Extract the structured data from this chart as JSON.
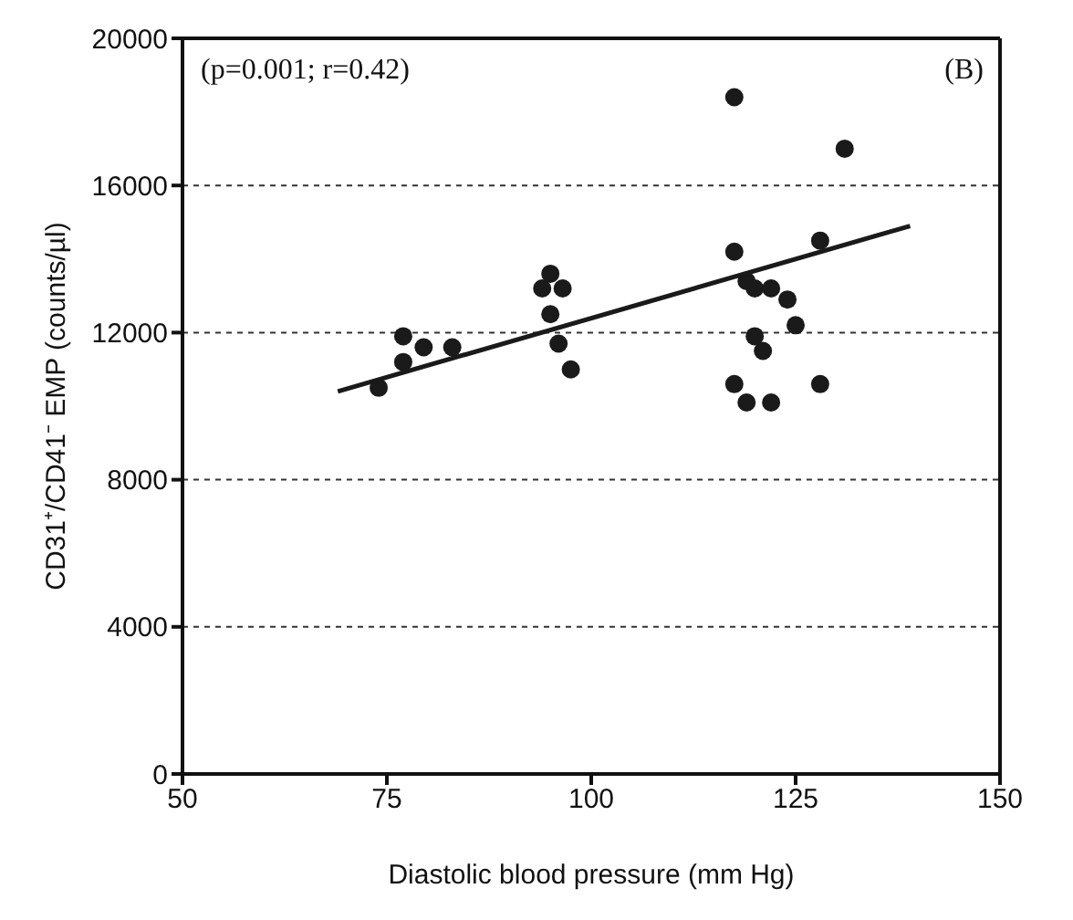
{
  "chart_data": {
    "type": "scatter",
    "xlabel": "Diastolic blood pressure (mm Hg)",
    "ylabel": "CD31⁺/CD41⁻ EMP (counts/µl)",
    "annotations": [
      "(p=0.001; r=0.42)",
      "(B)"
    ],
    "xlim": [
      50,
      150
    ],
    "xticks": [
      50,
      75,
      100,
      125,
      150
    ],
    "ylim": [
      0,
      20000
    ],
    "yticks": [
      0,
      4000,
      8000,
      12000,
      16000,
      20000
    ],
    "grid": "y",
    "marker": "circle",
    "series": [
      {
        "color": "#1a1a1a",
        "x": [
          74,
          77,
          77,
          79.5,
          83,
          94,
          95,
          95,
          96.5,
          96,
          97.5,
          117.5,
          117.5,
          119,
          120,
          122,
          124,
          120,
          121,
          125,
          117.5,
          119,
          122,
          128,
          128,
          131
        ],
        "values": [
          10500,
          11200,
          11900,
          11600,
          11600,
          13200,
          13600,
          12500,
          13200,
          11700,
          11000,
          18400,
          14200,
          13400,
          13200,
          13200,
          12900,
          11900,
          11500,
          12200,
          10600,
          10100,
          10100,
          14500,
          10600,
          17000
        ]
      },
      {
        "type": "line",
        "marker": "none",
        "color": "#1a1a1a",
        "x": [
          69,
          139
        ],
        "values": [
          10400,
          14900
        ]
      }
    ]
  }
}
